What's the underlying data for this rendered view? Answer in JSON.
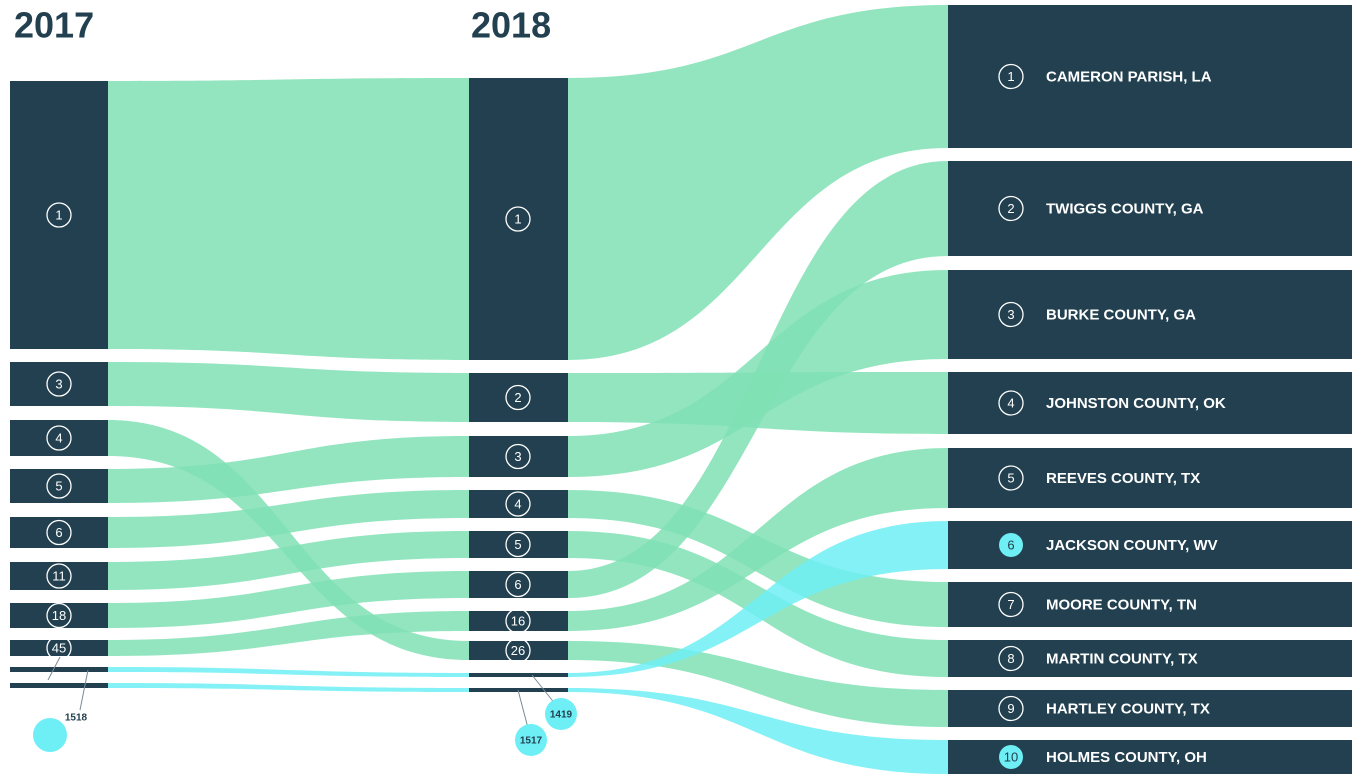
{
  "columns": [
    {
      "title": "2017",
      "nodes": [
        "1",
        "3",
        "4",
        "5",
        "6",
        "11",
        "18",
        "45",
        "1518"
      ]
    },
    {
      "title": "2018",
      "nodes": [
        "1",
        "2",
        "3",
        "4",
        "5",
        "6",
        "16",
        "26",
        "1517",
        "1419"
      ]
    }
  ],
  "counties": [
    {
      "rank": "1",
      "name": "CAMERON PARISH, LA"
    },
    {
      "rank": "2",
      "name": "TWIGGS COUNTY, GA"
    },
    {
      "rank": "3",
      "name": "BURKE COUNTY, GA"
    },
    {
      "rank": "4",
      "name": "JOHNSTON COUNTY, OK"
    },
    {
      "rank": "5",
      "name": "REEVES COUNTY, TX"
    },
    {
      "rank": "6",
      "name": "JACKSON COUNTY, WV"
    },
    {
      "rank": "7",
      "name": "MOORE COUNTY, TN"
    },
    {
      "rank": "8",
      "name": "MARTIN COUNTY, TX"
    },
    {
      "rank": "9",
      "name": "HARTLEY COUNTY, TX"
    },
    {
      "rank": "10",
      "name": "HOLMES COUNTY, OH"
    }
  ]
}
